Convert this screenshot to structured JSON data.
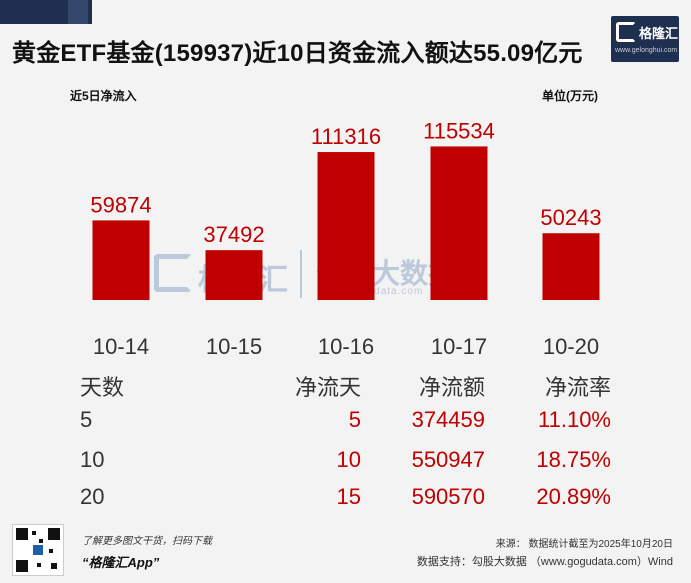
{
  "title": "黄金ETF基金(159937)近10日资金流入额达55.09亿元",
  "logo": {
    "name": "格隆汇",
    "url": "www.gelonghui.com"
  },
  "subtitle_left": "近5日净流入",
  "unit_label": "单位(万元)",
  "chart_data": {
    "type": "bar",
    "categories": [
      "10-14",
      "10-15",
      "10-16",
      "10-17",
      "10-20"
    ],
    "values": [
      59874,
      37492,
      111316,
      115534,
      50243
    ],
    "title": "近5日净流入",
    "ylabel": "单位(万元)",
    "ylim": [
      0,
      130000
    ],
    "bar_color": "#c00000",
    "label_color": "#c00000"
  },
  "table": {
    "headers": [
      "天数",
      "净流天",
      "净流额",
      "净流率"
    ],
    "rows": [
      [
        "5",
        "5",
        "374459",
        "11.10%"
      ],
      [
        "10",
        "10",
        "550947",
        "18.75%"
      ],
      [
        "20",
        "15",
        "590570",
        "20.89%"
      ]
    ]
  },
  "watermark": {
    "brand": "格隆汇",
    "brand2": "勾股大数据",
    "url": "www.gogudata.com"
  },
  "footer": {
    "qr_caption": "了解更多图文干货，扫码下载",
    "app_name": "“格隆汇App”",
    "source": "来源： 数据统计截至为2025年10月20日",
    "data_support": "数据支持：勾股大数据 （www.gogudata.com）Wind"
  }
}
